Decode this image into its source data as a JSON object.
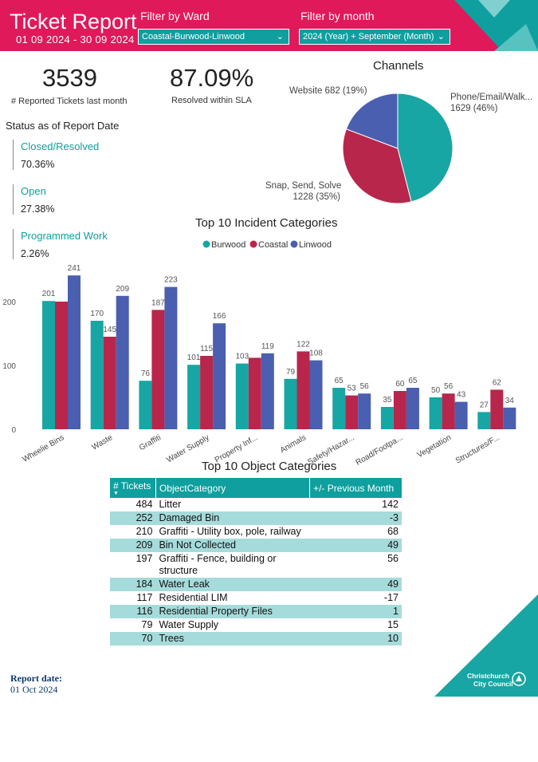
{
  "header": {
    "title": "Ticket Report",
    "date_range": "01 09 2024 - 30 09 2024",
    "ward_filter_label": "Filter by Ward",
    "ward_filter_value": "Coastal-Burwood-Linwood",
    "month_filter_label": "Filter by month",
    "month_filter_value": "2024 (Year) + September (Month)"
  },
  "kpis": {
    "tickets_value": "3539",
    "tickets_label": "# Reported Tickets last month",
    "sla_value": "87.09%",
    "sla_label": "Resolved within SLA"
  },
  "status": {
    "title": "Status as of Report Date",
    "items": [
      {
        "name": "Closed/Resolved",
        "value": "70.36%"
      },
      {
        "name": "Open",
        "value": "27.38%"
      },
      {
        "name": "Programmed Work",
        "value": "2.26%"
      }
    ]
  },
  "colors": {
    "brand_pink": "#e0195a",
    "teal": "#17a6a3",
    "crimson": "#b8264c",
    "blue": "#4a5fb0",
    "table_alt_row": "#a6dbdb"
  },
  "chart_data": [
    {
      "type": "pie",
      "title": "Channels",
      "slices": [
        {
          "name": "Phone/Email/Walk...",
          "value": 1629,
          "percent": "46%",
          "label_value": "1629 (46%)",
          "color": "#17a6a3"
        },
        {
          "name": "Snap, Send, Solve",
          "value": 1228,
          "percent": "35%",
          "label_value": "1228 (35%)",
          "color": "#b8264c"
        },
        {
          "name": "Website",
          "value": 682,
          "percent": "19%",
          "label_value": "682 (19%)",
          "color": "#4a5fb0"
        }
      ]
    },
    {
      "type": "bar",
      "title": "Top 10 Incident Categories",
      "categories": [
        "Wheelie Bins",
        "Waste",
        "Graffiti",
        "Water Supply",
        "Property Inf...",
        "Animals",
        "Safety/Hazar...",
        "Road/Footpa...",
        "Vegetation",
        "Structures/F..."
      ],
      "series": [
        {
          "name": "Burwood",
          "color": "#17a6a3",
          "values": [
            201,
            170,
            76,
            101,
            103,
            79,
            65,
            35,
            50,
            27
          ],
          "labels": [
            "201",
            "170",
            "76",
            "101",
            "103",
            "79",
            "65",
            "35",
            "50",
            "27"
          ]
        },
        {
          "name": "Coastal",
          "color": "#b8264c",
          "values": [
            200,
            145,
            187,
            115,
            112,
            122,
            53,
            60,
            56,
            62
          ],
          "labels": [
            "",
            "145",
            "187",
            "115",
            "",
            "122",
            "53",
            "60",
            "56",
            "62"
          ]
        },
        {
          "name": "Linwood",
          "color": "#4a5fb0",
          "values": [
            241,
            209,
            223,
            166,
            119,
            108,
            56,
            65,
            43,
            34
          ],
          "labels": [
            "241",
            "209",
            "223",
            "166",
            "119",
            "108",
            "56",
            "65",
            "43",
            "34"
          ]
        }
      ],
      "ylim": [
        0,
        250
      ],
      "yticks": [
        0,
        100,
        200
      ],
      "legend": "top-center",
      "grid": false
    }
  ],
  "table": {
    "title": "Top 10 Object Categories",
    "columns": [
      "# Tickets",
      "ObjectCategory",
      "+/- Previous Month"
    ],
    "rows": [
      {
        "tickets": "484",
        "category": "Litter",
        "change": "142"
      },
      {
        "tickets": "252",
        "category": "Damaged Bin",
        "change": "-3"
      },
      {
        "tickets": "210",
        "category": "Graffiti - Utility box, pole, railway",
        "change": "68"
      },
      {
        "tickets": "209",
        "category": "Bin Not Collected",
        "change": "49"
      },
      {
        "tickets": "197",
        "category": "Graffiti - Fence, building or structure",
        "change": "56"
      },
      {
        "tickets": "184",
        "category": "Water Leak",
        "change": "49"
      },
      {
        "tickets": "117",
        "category": "Residential LIM",
        "change": "-17"
      },
      {
        "tickets": "116",
        "category": "Residential Property Files",
        "change": "1"
      },
      {
        "tickets": "79",
        "category": "Water Supply",
        "change": "15"
      },
      {
        "tickets": "70",
        "category": "Trees",
        "change": "10"
      }
    ]
  },
  "footer": {
    "report_date_label": "Report date:",
    "report_date_value": "01 Oct 2024",
    "logo_line1": "Christchurch",
    "logo_line2": "City Council"
  }
}
